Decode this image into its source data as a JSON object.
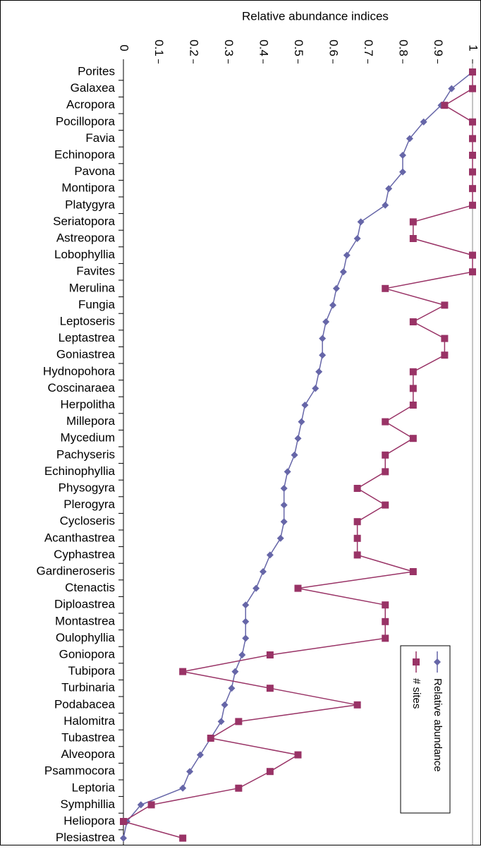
{
  "chart_data": {
    "type": "line",
    "orientation": "horizontal",
    "xlabel": "Relative abundance indices",
    "categories": [
      "Porites",
      "Galaxea",
      "Acropora",
      "Pocillopora",
      "Favia",
      "Echinopora",
      "Pavona",
      "Montipora",
      "Platygyra",
      "Seriatopora",
      "Astreopora",
      "Lobophyllia",
      "Favites",
      "Merulina",
      "Fungia",
      "Leptoseris",
      "Leptastrea",
      "Goniastrea",
      "Hydnopohora",
      "Coscinaraea",
      "Herpolitha",
      "Millepora",
      "Mycedium",
      "Pachyseris",
      "Echinophyllia",
      "Physogyra",
      "Plerogyra",
      "Cycloseris",
      "Acanthastrea",
      "Cyphastrea",
      "Gardineroseris",
      "Ctenactis",
      "Diploastrea",
      "Montastrea",
      "Oulophyllia",
      "Goniopora",
      "Tubipora",
      "Turbinaria",
      "Podabacea",
      "Halomitra",
      "Tubastrea",
      "Alveopora",
      "Psammocora",
      "Leptoria",
      "Symphillia",
      "Heliopora",
      "Plesiastrea"
    ],
    "series": [
      {
        "name": "Relative abundance",
        "color": "#6666a8",
        "marker": "diamond",
        "values": [
          1.0,
          0.94,
          0.91,
          0.86,
          0.82,
          0.8,
          0.8,
          0.76,
          0.75,
          0.68,
          0.67,
          0.64,
          0.63,
          0.61,
          0.6,
          0.58,
          0.57,
          0.57,
          0.56,
          0.55,
          0.52,
          0.51,
          0.5,
          0.49,
          0.47,
          0.46,
          0.46,
          0.46,
          0.45,
          0.42,
          0.4,
          0.38,
          0.35,
          0.35,
          0.35,
          0.34,
          0.32,
          0.31,
          0.29,
          0.28,
          0.25,
          0.22,
          0.19,
          0.17,
          0.05,
          0.01,
          0.0
        ]
      },
      {
        "name": "# sites",
        "color": "#993366",
        "marker": "square",
        "values": [
          1,
          1,
          0.92,
          1,
          1,
          1,
          1,
          1,
          1,
          0.83,
          0.83,
          1,
          1,
          0.75,
          0.92,
          0.83,
          0.92,
          0.92,
          0.83,
          0.83,
          0.83,
          0.75,
          0.83,
          0.75,
          0.75,
          0.67,
          0.75,
          0.67,
          0.67,
          0.67,
          0.83,
          0.5,
          0.75,
          0.75,
          0.75,
          0.42,
          0.17,
          0.42,
          0.67,
          0.33,
          0.25,
          0.5,
          0.42,
          0.33,
          0.08,
          0.0,
          0.17
        ]
      }
    ],
    "xlim": [
      0,
      1
    ],
    "xticks": [
      0,
      0.1,
      0.2,
      0.3,
      0.4,
      0.5,
      0.6,
      0.7,
      0.8,
      0.9,
      1
    ],
    "legend": "right"
  }
}
